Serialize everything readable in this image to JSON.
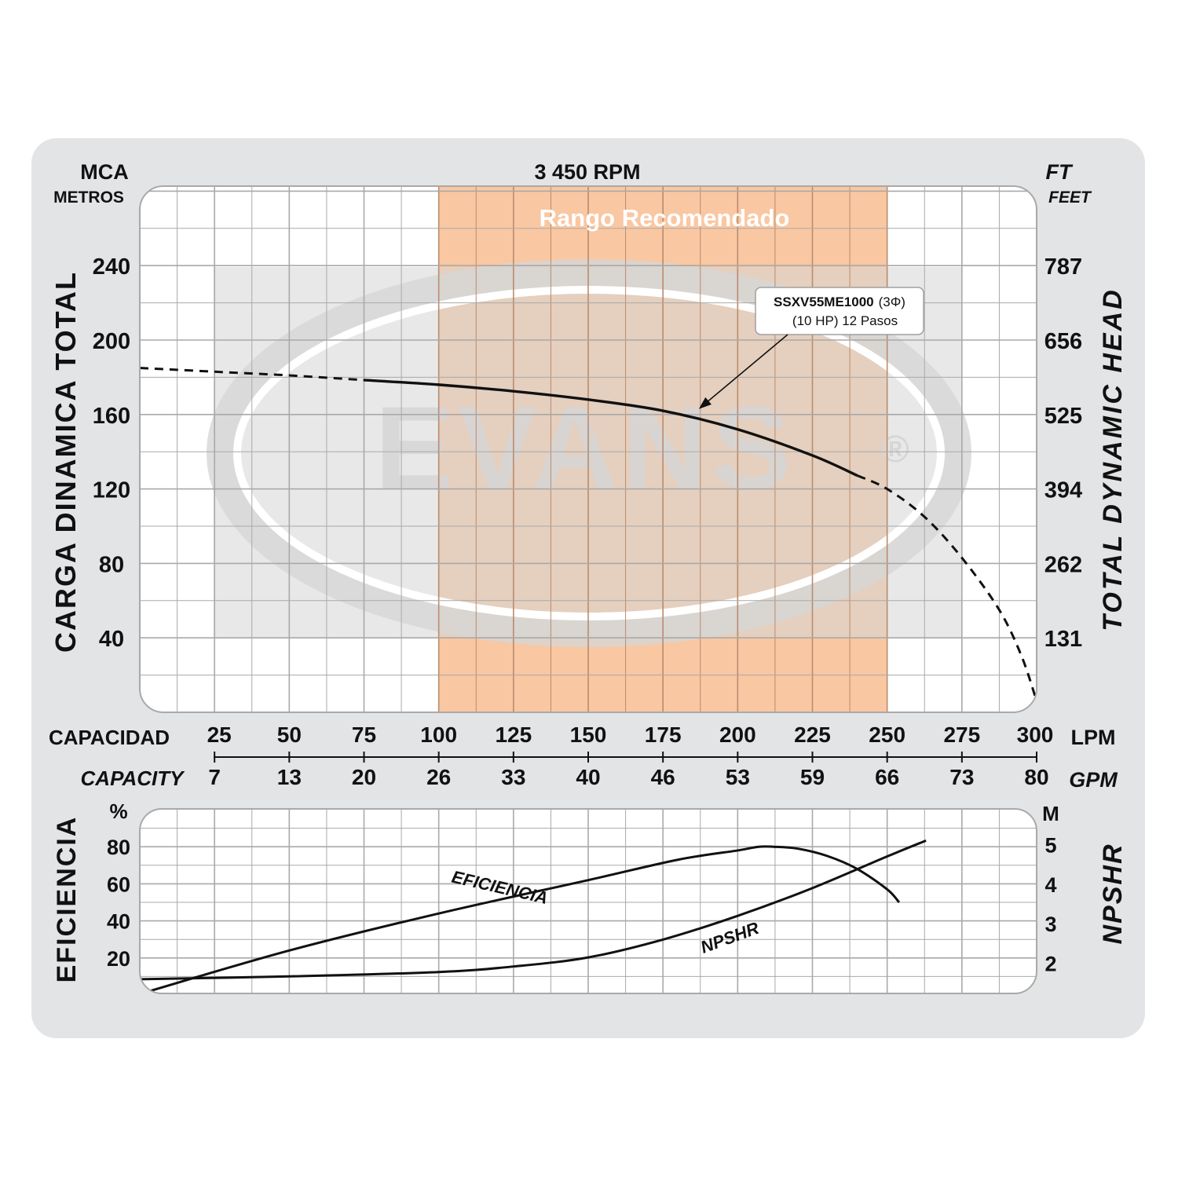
{
  "colors": {
    "panel": "#e3e4e6",
    "plot_bg": "#ffffff",
    "grid": "#a9a9a9",
    "range_fill": "#f9c7a2",
    "range_grid": "#b98c6e",
    "curve": "#111111",
    "watermark": "#d6d6d6",
    "range_title": "#ffffff"
  },
  "header": {
    "left_unit": "MCA",
    "left_unit_sub": "METROS",
    "rpm": "3 450 RPM",
    "right_unit": "FT",
    "right_unit_sub": "FEET"
  },
  "watermark": {
    "brand": "EVANS",
    "registered": "®"
  },
  "chart_data": [
    {
      "type": "line",
      "name": "head-curve",
      "title": "3 450 RPM",
      "xlabel": "CAPACIDAD",
      "xlabel_en": "CAPACITY",
      "ylabel": "CARGA DINAMICA TOTAL",
      "ylabel_right": "TOTAL DYNAMIC HEAD",
      "xlim": [
        0,
        300
      ],
      "ylim": [
        0,
        280
      ],
      "x_unit": "LPM",
      "x_unit_secondary": "GPM",
      "x_ticks_lpm": [
        "25",
        "50",
        "75",
        "100",
        "125",
        "150",
        "175",
        "200",
        "225",
        "250",
        "275",
        "300"
      ],
      "x_ticks_lpm_values": [
        25,
        50,
        75,
        100,
        125,
        150,
        175,
        200,
        225,
        250,
        275,
        300
      ],
      "x_ticks_gpm": [
        "7",
        "13",
        "20",
        "26",
        "33",
        "40",
        "46",
        "53",
        "59",
        "66",
        "73",
        "80"
      ],
      "y_ticks": [
        "40",
        "80",
        "120",
        "160",
        "200",
        "240"
      ],
      "y_tick_values": [
        40,
        80,
        120,
        160,
        200,
        240
      ],
      "y_ticks_ft": [
        "131",
        "262",
        "394",
        "525",
        "656",
        "787"
      ],
      "recommended_range": {
        "label": "Rango Recomendado",
        "x_start": 100,
        "x_end": 250
      },
      "annotation": {
        "model": "SSXV55ME1000",
        "phase": "(3Φ)",
        "detail": "(10 HP) 12 Pasos",
        "points_to": [
          187,
          163
        ]
      },
      "series": [
        {
          "name": "SSXV55ME1000",
          "x": [
            0,
            25,
            50,
            75,
            100,
            125,
            150,
            175,
            200,
            225,
            250,
            262.5,
            275,
            287.5,
            295,
            300
          ],
          "y": [
            185,
            183,
            181,
            178.5,
            176,
            172.5,
            168,
            162,
            152,
            138,
            120,
            105,
            83,
            55,
            30,
            6
          ],
          "solid_range": [
            75,
            240
          ]
        }
      ]
    },
    {
      "type": "line",
      "name": "efficiency-npshr",
      "ylabel": "EFICIENCIA",
      "ylabel_unit": "%",
      "ylabel_right": "NPSHR",
      "ylabel_right_unit": "M",
      "xlim": [
        0,
        300
      ],
      "ylim": [
        0,
        100
      ],
      "y_ticks": [
        "20",
        "40",
        "60",
        "80"
      ],
      "y_tick_values": [
        20,
        40,
        60,
        80
      ],
      "y_ticks_right": [
        "2",
        "3",
        "4",
        "5"
      ],
      "y_right_values": [
        2,
        3,
        4,
        5
      ],
      "y_right_lim": [
        1.2,
        5.88
      ],
      "series": [
        {
          "name": "EFICIENCIA",
          "label": "EFICIENCIA",
          "label_at": [
            120,
            55,
            13
          ],
          "x": [
            3,
            50,
            100,
            150,
            180,
            200,
            207,
            212,
            220,
            230,
            240,
            250,
            254
          ],
          "y": [
            2,
            24,
            44,
            62,
            73,
            78,
            80,
            80,
            79,
            75,
            68,
            57,
            50
          ]
        },
        {
          "name": "NPSHR",
          "label": "NPSHR",
          "label_at": [
            198,
            28,
            -20
          ],
          "x": [
            0,
            50,
            100,
            125,
            150,
            175,
            200,
            225,
            250,
            263
          ],
          "y_m": [
            1.6,
            1.67,
            1.78,
            1.92,
            2.15,
            2.6,
            3.2,
            3.9,
            4.7,
            5.1
          ]
        }
      ]
    }
  ]
}
